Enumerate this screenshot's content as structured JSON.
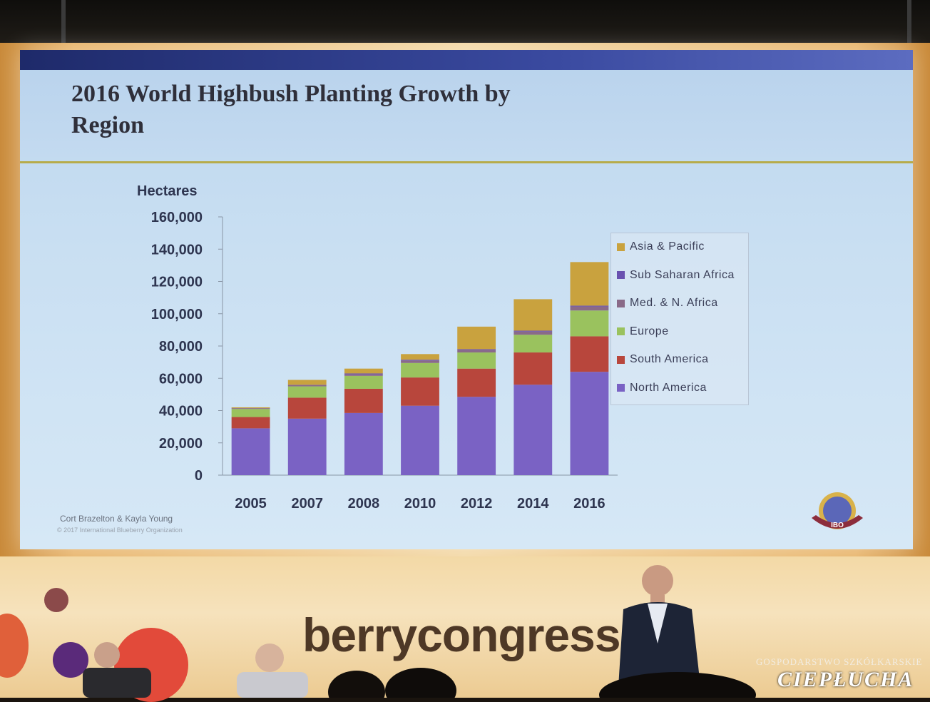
{
  "slide": {
    "title": "2016 World Highbush Planting Growth by Region",
    "credit": "Cort Brazelton & Kayla Young",
    "copyright": "© 2017 International Blueberry Organization",
    "logo_text": "IBO"
  },
  "venue": {
    "brand": "berrycongress.c",
    "watermark_top": "GOSPODARSTWO SZKÓŁKARSKIE",
    "watermark_main": "CIEPŁUCHA"
  },
  "colors": {
    "north_america": "#7a62c4",
    "south_america": "#b8463c",
    "europe": "#9ac25e",
    "med_n_africa": "#8a6a88",
    "sub_saharan_africa": "#6a52b0",
    "asia_pacific": "#c9a23e"
  },
  "chart_data": {
    "type": "bar",
    "stacked": true,
    "title": "2016 World Highbush Planting Growth by Region",
    "ylabel": "Hectares",
    "xlabel": "",
    "ylim": [
      0,
      160000
    ],
    "yticks": [
      "0",
      "20,000",
      "40,000",
      "60,000",
      "80,000",
      "100,000",
      "120,000",
      "140,000",
      "160,000"
    ],
    "categories": [
      "2005",
      "2007",
      "2008",
      "2010",
      "2012",
      "2014",
      "2016"
    ],
    "legend_position": "right",
    "series": [
      {
        "name": "North America",
        "color": "#7a62c4",
        "values": [
          29000,
          35000,
          38500,
          43000,
          48500,
          56000,
          64000
        ]
      },
      {
        "name": "South America",
        "color": "#b8463c",
        "values": [
          7000,
          13000,
          15000,
          17500,
          17500,
          20000,
          22000
        ]
      },
      {
        "name": "Europe",
        "color": "#9ac25e",
        "values": [
          5000,
          7000,
          8000,
          9000,
          10000,
          11000,
          16000
        ]
      },
      {
        "name": "Med. & N. Africa",
        "color": "#8a6a88",
        "values": [
          500,
          1000,
          1000,
          1500,
          1500,
          2000,
          2500
        ]
      },
      {
        "name": "Sub Saharan Africa",
        "color": "#6a52b0",
        "values": [
          0,
          0,
          500,
          500,
          500,
          500,
          500
        ]
      },
      {
        "name": "Asia & Pacific",
        "color": "#c9a23e",
        "values": [
          500,
          3000,
          3000,
          3500,
          14000,
          19500,
          27000
        ]
      }
    ]
  }
}
